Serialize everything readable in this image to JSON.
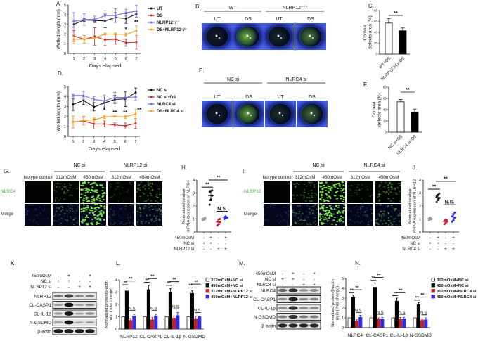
{
  "panel_labels": {
    "A": "A",
    "B": "B.",
    "C": "C.",
    "D": "D.",
    "E": "E.",
    "F": "F.",
    "G": "G.",
    "H": "H.",
    "I": "I.",
    "J": "J.",
    "K": "K.",
    "L": "L.",
    "M": "M.",
    "N": "N."
  },
  "panel_B": {
    "groups": [
      "WT",
      "NLRP12⁻/⁻"
    ],
    "columns": [
      "UT",
      "DS",
      "UT",
      "DS"
    ],
    "stain_level": [
      0.1,
      0.9,
      0.15,
      0.6
    ]
  },
  "panel_E": {
    "groups": [
      "NC si",
      "NLRC4 si"
    ],
    "columns": [
      "UT",
      "DS",
      "UT",
      "DS"
    ],
    "stain_level": [
      0.1,
      0.8,
      0.2,
      0.5
    ]
  },
  "panel_G": {
    "groups": [
      "NC si",
      "NLRP12 si"
    ],
    "columns": [
      "Isotype control",
      "312mOsM",
      "450mOsM",
      "312mOsM",
      "450mOsM"
    ],
    "rows": [
      "NLRC4",
      "Merge"
    ],
    "signal": [
      0,
      0.4,
      1,
      0.15,
      0.5
    ]
  },
  "panel_I": {
    "groups": [
      "NC si",
      "NLRC4 si"
    ],
    "columns": [
      "Isotype control",
      "312mOsM",
      "450mOsM",
      "312mOsM",
      "450mOsM"
    ],
    "rows": [
      "NLRP12",
      "Merge"
    ],
    "signal": [
      0,
      0.45,
      1,
      0.2,
      0.55
    ]
  },
  "panel_K": {
    "conditions": [
      {
        "label": "450mOsM",
        "signs": [
          "-",
          "+",
          "-",
          "+"
        ]
      },
      {
        "label": "NC si",
        "signs": [
          "+",
          "+",
          "-",
          "-"
        ]
      },
      {
        "label": "NLRP12 si",
        "signs": [
          "-",
          "-",
          "+",
          "+"
        ]
      }
    ],
    "blots": [
      {
        "label": "NLRP12",
        "band_intensity": [
          0.45,
          0.7,
          0.35,
          0.4
        ]
      },
      {
        "label": "CL-CASP1",
        "band_intensity": [
          0.25,
          0.95,
          0.2,
          0.3
        ]
      },
      {
        "label": "CL-IL-1β",
        "band_intensity": [
          0.25,
          0.95,
          0.2,
          0.3
        ]
      },
      {
        "label": "N-GSDMD",
        "band_intensity": [
          0.2,
          0.95,
          0.15,
          0.2
        ]
      },
      {
        "label": "β-actin",
        "band_intensity": [
          0.9,
          0.9,
          0.9,
          0.9
        ]
      }
    ]
  },
  "panel_M": {
    "conditions": [
      {
        "label": "450mOsM",
        "signs": [
          "-",
          "+",
          "-",
          "+"
        ]
      },
      {
        "label": "NC si",
        "signs": [
          "+",
          "+",
          "-",
          "-"
        ]
      },
      {
        "label": "NLRC4 si",
        "signs": [
          "-",
          "-",
          "+",
          "+"
        ]
      }
    ],
    "blots": [
      {
        "label": "NLRC4",
        "band_intensity": [
          0.5,
          0.8,
          0.3,
          0.35
        ]
      },
      {
        "label": "CL-CASP1",
        "band_intensity": [
          0.3,
          0.9,
          0.3,
          0.35
        ]
      },
      {
        "label": "CL-IL-1β",
        "band_intensity": [
          0.3,
          0.8,
          0.3,
          0.3
        ]
      },
      {
        "label": "N-GSDMD",
        "band_intensity": [
          0.4,
          0.8,
          0.4,
          0.4
        ]
      },
      {
        "label": "β-actin",
        "band_intensity": [
          0.85,
          0.85,
          0.85,
          0.85
        ]
      }
    ]
  },
  "chart_data": [
    {
      "panel": "A",
      "type": "line",
      "xlabel": "Days elapsed",
      "ylabel": "Wetted length (mm)",
      "x": [
        1,
        2,
        3,
        4,
        5,
        6,
        7
      ],
      "ylim": [
        0,
        5
      ],
      "yticks": [
        0,
        1,
        2,
        3,
        4,
        5
      ],
      "legend": "right",
      "series": [
        {
          "name": "UT",
          "color": "#111111",
          "values": [
            3.0,
            3.45,
            3.4,
            3.35,
            3.7,
            3.6,
            4.05
          ],
          "errors": [
            0.3,
            0.15,
            0.15,
            0.7,
            0.5,
            0.5,
            0.3
          ]
        },
        {
          "name": "DS",
          "color": "#d42a2a",
          "values": [
            1.8,
            1.45,
            1.75,
            1.4,
            1.45,
            1.1,
            1.15
          ],
          "errors": [
            0.55,
            0.4,
            0.9,
            0.6,
            0.5,
            0.35,
            0.7
          ]
        },
        {
          "name": "NLRP12⁻/⁻",
          "color": "#7a6cf2",
          "values": [
            3.3,
            3.5,
            3.5,
            3.9,
            3.9,
            4.2,
            4.35
          ],
          "errors": [
            0.9,
            0.6,
            0.35,
            0.5,
            0.7,
            0.35,
            0.6
          ]
        },
        {
          "name": "DS+NLRP12⁻/⁻",
          "color": "#f0a020",
          "values": [
            1.45,
            1.45,
            1.6,
            2.0,
            2.0,
            1.95,
            2.35
          ],
          "errors": [
            0.45,
            0.4,
            0.1,
            0.1,
            0.1,
            0.15,
            0.5
          ]
        }
      ],
      "annotations": [
        {
          "x": 6,
          "y": 2.3,
          "label": "*"
        },
        {
          "x": 7,
          "y": 3.0,
          "label": "**"
        }
      ]
    },
    {
      "panel": "D",
      "type": "line",
      "xlabel": "Days elapsed",
      "ylabel": "Wetted length (mm)",
      "x": [
        1,
        2,
        3,
        4,
        5,
        6,
        7
      ],
      "ylim": [
        0,
        5
      ],
      "yticks": [
        0,
        1,
        2,
        3,
        4,
        5
      ],
      "legend": "right",
      "series": [
        {
          "name": "NC si",
          "color": "#111111",
          "values": [
            3.2,
            3.6,
            2.95,
            3.35,
            3.7,
            3.75,
            4.4
          ],
          "errors": [
            0.6,
            0.4,
            0.4,
            0.7,
            0.4,
            0.75,
            0.45
          ]
        },
        {
          "name": "NC si+DS",
          "color": "#d42a2a",
          "values": [
            1.45,
            1.55,
            1.25,
            1.25,
            1.15,
            1.05,
            1.3
          ],
          "errors": [
            0.6,
            0.4,
            0.5,
            0.3,
            0.2,
            0.3,
            0.5
          ]
        },
        {
          "name": "NLRC4 si",
          "color": "#7a6cf2",
          "values": [
            4.1,
            4.1,
            3.7,
            3.55,
            3.9,
            3.9,
            3.95
          ],
          "errors": [
            0.15,
            0.4,
            0.3,
            0.6,
            0.5,
            0.15,
            0.35
          ]
        },
        {
          "name": "DS+NLRC4 si",
          "color": "#f0a020",
          "values": [
            1.45,
            1.6,
            1.65,
            1.95,
            2.0,
            1.95,
            2.25
          ],
          "errors": [
            0.6,
            0.45,
            0.2,
            0.15,
            0.05,
            0.15,
            0.45
          ]
        }
      ],
      "annotations": [
        {
          "x": 4,
          "y": 2.45,
          "label": "*"
        },
        {
          "x": 5,
          "y": 2.2,
          "label": "**"
        },
        {
          "x": 6,
          "y": 2.2,
          "label": "**"
        },
        {
          "x": 7.35,
          "y": 2.45,
          "label": "**"
        }
      ]
    },
    {
      "panel": "C",
      "type": "bar",
      "ylabel": "Corneal defects area (%)",
      "categories": [
        "WT+DS",
        "NLRP12 KO+DS"
      ],
      "values": [
        57,
        43
      ],
      "errors": [
        8,
        5
      ],
      "colors": [
        "#ffffff",
        "#000000"
      ],
      "ylim": [
        0,
        80
      ],
      "yticks": [
        0,
        20,
        40,
        60,
        80
      ],
      "significance": "**"
    },
    {
      "panel": "F",
      "type": "bar",
      "ylabel": "Corneal defects area (%)",
      "categories": [
        "NC si+DS",
        "NLRC4 si+DS"
      ],
      "values": [
        54,
        35
      ],
      "errors": [
        4,
        6
      ],
      "colors": [
        "#ffffff",
        "#000000"
      ],
      "ylim": [
        0,
        80
      ],
      "yticks": [
        0,
        20,
        40,
        60,
        80
      ],
      "significance": "**"
    },
    {
      "panel": "H",
      "type": "scatter",
      "ylabel": "Normalized relative mRNA expression of NLRC4",
      "ylim": [
        0,
        4
      ],
      "yticks": [
        0,
        1,
        2,
        3,
        4
      ],
      "groups": [
        {
          "color": "#9a9a9a",
          "points": [
            0.9,
            0.95,
            1.0,
            1.0,
            1.05,
            1.1
          ],
          "mean": 1.0,
          "sd": 0.07
        },
        {
          "color": "#111111",
          "points": [
            2.1,
            2.5,
            2.8,
            3.1,
            3.15,
            3.2
          ],
          "mean": 2.8,
          "sd": 0.4
        },
        {
          "color": "#c0203a",
          "points": [
            0.5,
            0.6,
            0.75,
            0.8,
            0.95,
            1.0
          ],
          "mean": 0.77,
          "sd": 0.2
        },
        {
          "color": "#2a2ae8",
          "points": [
            1.0,
            1.05,
            1.1,
            1.15,
            1.2,
            1.1
          ],
          "mean": 1.1,
          "sd": 0.07
        }
      ],
      "comparisons": [
        {
          "a": 0,
          "b": 1,
          "y": 3.45,
          "label": "**"
        },
        {
          "a": 1,
          "b": 3,
          "y": 4.0,
          "label": "**"
        },
        {
          "a": 2,
          "b": 3,
          "y": 1.6,
          "label": "N.S."
        }
      ],
      "conditions": [
        {
          "label": "450mOsM",
          "signs": [
            "-",
            "+",
            "-",
            "+"
          ]
        },
        {
          "label": "NC si",
          "signs": [
            "+",
            "+",
            "-",
            "-"
          ]
        },
        {
          "label": "NLRP12 si",
          "signs": [
            "-",
            "-",
            "+",
            "+"
          ]
        }
      ]
    },
    {
      "panel": "J",
      "type": "scatter",
      "ylabel": "Normalized relative mRNA expression of NLRP12",
      "ylim": [
        0,
        4
      ],
      "yticks": [
        0,
        1,
        2,
        3,
        4
      ],
      "groups": [
        {
          "color": "#9a9a9a",
          "points": [
            0.9,
            0.95,
            1.0,
            1.05,
            1.1,
            1.0
          ],
          "mean": 1.0,
          "sd": 0.07
        },
        {
          "color": "#111111",
          "points": [
            2.3,
            2.5,
            2.6,
            2.75,
            2.85,
            2.95
          ],
          "mean": 2.65,
          "sd": 0.25
        },
        {
          "color": "#c0203a",
          "points": [
            0.6,
            0.7,
            0.8,
            0.85,
            0.95,
            0.9
          ],
          "mean": 0.8,
          "sd": 0.13
        },
        {
          "color": "#2a2ae8",
          "points": [
            0.8,
            0.9,
            1.1,
            1.2,
            1.35,
            1.5
          ],
          "mean": 1.15,
          "sd": 0.26
        }
      ],
      "comparisons": [
        {
          "a": 0,
          "b": 1,
          "y": 3.3,
          "label": "**"
        },
        {
          "a": 1,
          "b": 3,
          "y": 3.9,
          "label": "**"
        },
        {
          "a": 2,
          "b": 3,
          "y": 2.1,
          "label": "N.S."
        }
      ],
      "conditions": [
        {
          "label": "450mOsM",
          "signs": [
            "-",
            "+",
            "-",
            "+"
          ]
        },
        {
          "label": "NC si",
          "signs": [
            "+",
            "+",
            "-",
            "-"
          ]
        },
        {
          "label": "NLRC4 si",
          "signs": [
            "-",
            "-",
            "+",
            "+"
          ]
        }
      ]
    },
    {
      "panel": "L",
      "type": "bar",
      "ylabel": "Normalized protein/β-actin ratio ( fold change)",
      "ylim": [
        0,
        4
      ],
      "yticks": [
        0,
        1,
        2,
        3,
        4
      ],
      "legend": "right",
      "categories": [
        "NLRP12",
        "CL-CASP1",
        "CL-IL-1β",
        "N-GSDMD"
      ],
      "series": [
        {
          "name": "312mOsM+NC si",
          "color": "#ffffff",
          "values": [
            1,
            1,
            1,
            1
          ],
          "errors": [
            0,
            0,
            0,
            0
          ]
        },
        {
          "name": "450mOsM+NC si",
          "color": "#000000",
          "values": [
            3.1,
            3.2,
            3.0,
            2.9
          ],
          "errors": [
            0.25,
            0.35,
            0.3,
            0.2
          ]
        },
        {
          "name": "312mOsM+NLRP12 si",
          "color": "#c0202a",
          "values": [
            0.7,
            0.75,
            0.9,
            0.85
          ],
          "errors": [
            0.15,
            0.2,
            0.15,
            0.2
          ]
        },
        {
          "name": "450mOsM+NLRP12 si",
          "color": "#2a2ae8",
          "values": [
            1.05,
            1.05,
            1.1,
            1.0
          ],
          "errors": [
            0.15,
            0.15,
            0.25,
            0.05
          ]
        }
      ],
      "significance": [
        {
          "pair": [
            0,
            1
          ],
          "label": "**"
        },
        {
          "pair": [
            1,
            3
          ],
          "label": "**"
        },
        {
          "pair": [
            2,
            3
          ],
          "label": "N.S."
        }
      ],
      "significance_overrides": {
        "3": {
          "0": "*"
        }
      }
    },
    {
      "panel": "N",
      "type": "bar",
      "ylabel": "Normalized protein/β-actin ratio ( fold change)",
      "ylim": [
        0,
        5
      ],
      "yticks": [
        0,
        1,
        2,
        3,
        4,
        5
      ],
      "legend": "right",
      "categories": [
        "NLRC4",
        "CL-CASP1",
        "CL-IL-1β",
        "N-GSDMD"
      ],
      "series": [
        {
          "name": "312mOsM+NC si",
          "color": "#ffffff",
          "values": [
            1,
            1,
            1,
            1
          ],
          "errors": [
            0,
            0,
            0,
            0
          ]
        },
        {
          "name": "450mOsM+NC si",
          "color": "#000000",
          "values": [
            3.1,
            4.1,
            2.7,
            2.35
          ],
          "errors": [
            0.2,
            0.45,
            0.3,
            0.2
          ]
        },
        {
          "name": "312mOsM+NLRC4 si",
          "color": "#c0202a",
          "values": [
            0.7,
            0.85,
            0.85,
            0.75
          ],
          "errors": [
            0.1,
            0.15,
            0.2,
            0.1
          ]
        },
        {
          "name": "450mOsM+NLRC4 si",
          "color": "#2a2ae8",
          "values": [
            1.05,
            0.9,
            0.9,
            0.8
          ],
          "errors": [
            0.2,
            0.15,
            0.15,
            0.2
          ]
        }
      ],
      "significance": [
        {
          "pair": [
            0,
            1
          ],
          "label": "**"
        },
        {
          "pair": [
            1,
            3
          ],
          "label": "**"
        },
        {
          "pair": [
            2,
            3
          ],
          "label": "N.S."
        }
      ]
    }
  ]
}
